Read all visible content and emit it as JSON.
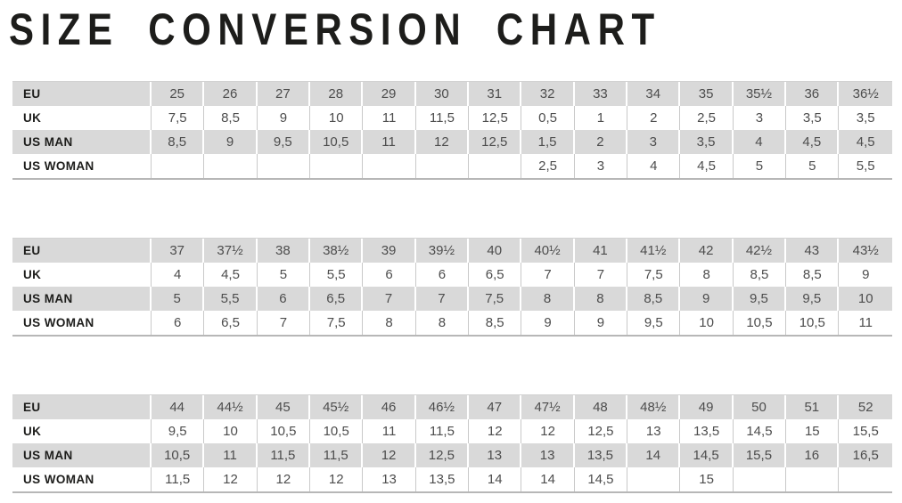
{
  "title": "SIZE CONVERSION CHART",
  "colors": {
    "title_text": "#1d1d1b",
    "label_text": "#1d1d1b",
    "value_text": "#4d4d4d",
    "shaded_row": "#d9d9d9",
    "plain_row": "#ffffff",
    "grid_line_on_white": "#c9c9c9",
    "grid_line_on_gray": "#ffffff",
    "table_bottom_border": "#b7b7b7"
  },
  "row_labels": [
    "EU",
    "UK",
    "US MAN",
    "US WOMAN"
  ],
  "chart_data": [
    {
      "type": "table",
      "name": "sizes-eu-25-to-36half",
      "rows": [
        {
          "label": "EU",
          "values": [
            "25",
            "26",
            "27",
            "28",
            "29",
            "30",
            "31",
            "32",
            "33",
            "34",
            "35",
            "35½",
            "36",
            "36½"
          ]
        },
        {
          "label": "UK",
          "values": [
            "7,5",
            "8,5",
            "9",
            "10",
            "11",
            "11,5",
            "12,5",
            "0,5",
            "1",
            "2",
            "2,5",
            "3",
            "3,5",
            "3,5"
          ]
        },
        {
          "label": "US MAN",
          "values": [
            "8,5",
            "9",
            "9,5",
            "10,5",
            "11",
            "12",
            "12,5",
            "1,5",
            "2",
            "3",
            "3,5",
            "4",
            "4,5",
            "4,5"
          ]
        },
        {
          "label": "US WOMAN",
          "values": [
            "",
            "",
            "",
            "",
            "",
            "",
            "",
            "2,5",
            "3",
            "4",
            "4,5",
            "5",
            "5",
            "5,5"
          ]
        }
      ]
    },
    {
      "type": "table",
      "name": "sizes-eu-37-to-43half",
      "rows": [
        {
          "label": "EU",
          "values": [
            "37",
            "37½",
            "38",
            "38½",
            "39",
            "39½",
            "40",
            "40½",
            "41",
            "41½",
            "42",
            "42½",
            "43",
            "43½"
          ]
        },
        {
          "label": "UK",
          "values": [
            "4",
            "4,5",
            "5",
            "5,5",
            "6",
            "6",
            "6,5",
            "7",
            "7",
            "7,5",
            "8",
            "8,5",
            "8,5",
            "9"
          ]
        },
        {
          "label": "US MAN",
          "values": [
            "5",
            "5,5",
            "6",
            "6,5",
            "7",
            "7",
            "7,5",
            "8",
            "8",
            "8,5",
            "9",
            "9,5",
            "9,5",
            "10"
          ]
        },
        {
          "label": "US WOMAN",
          "values": [
            "6",
            "6,5",
            "7",
            "7,5",
            "8",
            "8",
            "8,5",
            "9",
            "9",
            "9,5",
            "10",
            "10,5",
            "10,5",
            "11"
          ]
        }
      ]
    },
    {
      "type": "table",
      "name": "sizes-eu-44-to-52",
      "rows": [
        {
          "label": "EU",
          "values": [
            "44",
            "44½",
            "45",
            "45½",
            "46",
            "46½",
            "47",
            "47½",
            "48",
            "48½",
            "49",
            "50",
            "51",
            "52"
          ]
        },
        {
          "label": "UK",
          "values": [
            "9,5",
            "10",
            "10,5",
            "10,5",
            "11",
            "11,5",
            "12",
            "12",
            "12,5",
            "13",
            "13,5",
            "14,5",
            "15",
            "15,5"
          ]
        },
        {
          "label": "US MAN",
          "values": [
            "10,5",
            "11",
            "11,5",
            "11,5",
            "12",
            "12,5",
            "13",
            "13",
            "13,5",
            "14",
            "14,5",
            "15,5",
            "16",
            "16,5"
          ]
        },
        {
          "label": "US WOMAN",
          "values": [
            "11,5",
            "12",
            "12",
            "12",
            "13",
            "13,5",
            "14",
            "14",
            "14,5",
            "",
            "15",
            "",
            "",
            ""
          ]
        }
      ]
    }
  ]
}
